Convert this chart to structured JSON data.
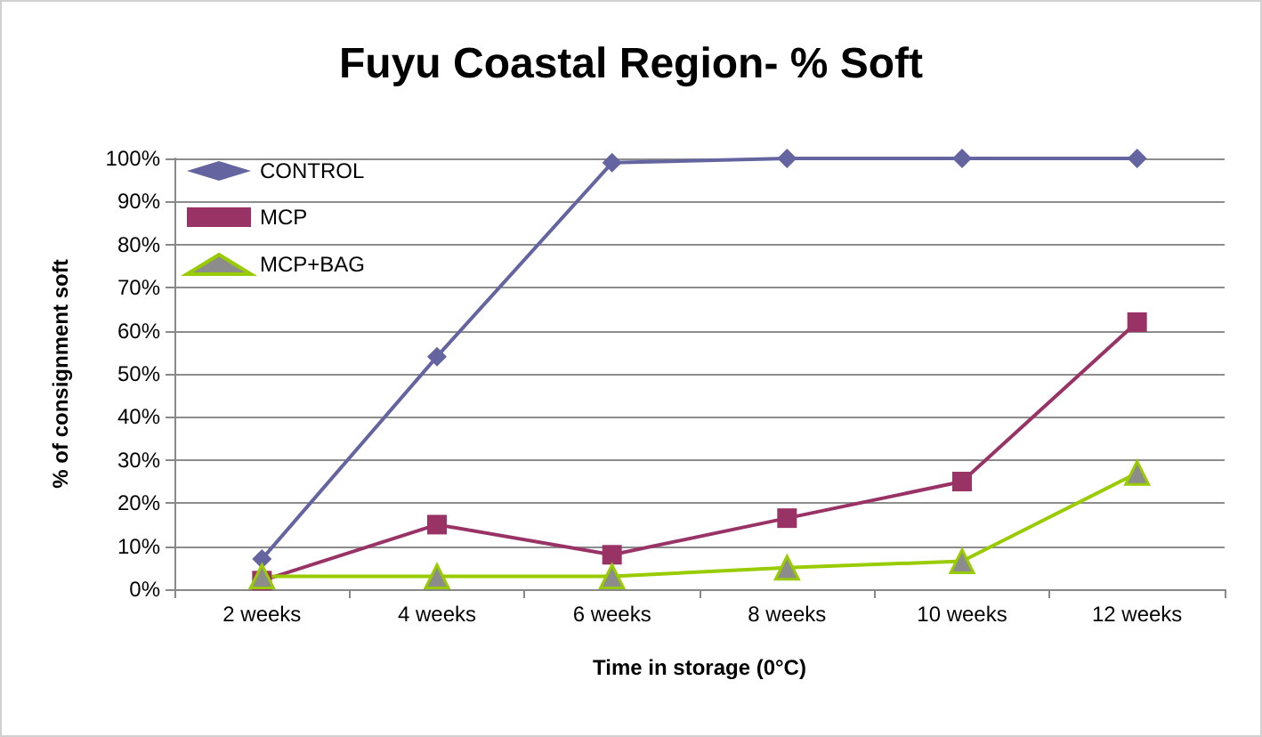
{
  "chart_data": {
    "type": "line",
    "title": "Fuyu Coastal Region- % Soft",
    "xlabel": "Time in storage (0°C)",
    "ylabel": "% of consignment soft",
    "categories": [
      "2 weeks",
      "4 weeks",
      "6 weeks",
      "8 weeks",
      "10 weeks",
      "12 weeks"
    ],
    "series": [
      {
        "name": "CONTROL",
        "color": "#6464a0",
        "marker": "diamond",
        "values": [
          7,
          54,
          99,
          100,
          100,
          100
        ]
      },
      {
        "name": "MCP",
        "color": "#993366",
        "marker": "square",
        "values": [
          2,
          15,
          8,
          16.5,
          25,
          62
        ]
      },
      {
        "name": "MCP+BAG",
        "color": "#99cc00",
        "marker": "triangle",
        "values": [
          3,
          3,
          3,
          5,
          6.5,
          27
        ]
      }
    ],
    "ylim": [
      0,
      100
    ],
    "yticks": [
      {
        "value": 0,
        "label": "0%"
      },
      {
        "value": 10,
        "label": "10%"
      },
      {
        "value": 20,
        "label": "20%"
      },
      {
        "value": 30,
        "label": "30%"
      },
      {
        "value": 40,
        "label": "40%"
      },
      {
        "value": 50,
        "label": "50%"
      },
      {
        "value": 60,
        "label": "60%"
      },
      {
        "value": 70,
        "label": "70%"
      },
      {
        "value": 80,
        "label": "80%"
      },
      {
        "value": 90,
        "label": "90%"
      },
      {
        "value": 100,
        "label": "100%"
      }
    ],
    "grid": "y",
    "legend": "top left",
    "line_style": "solid"
  }
}
